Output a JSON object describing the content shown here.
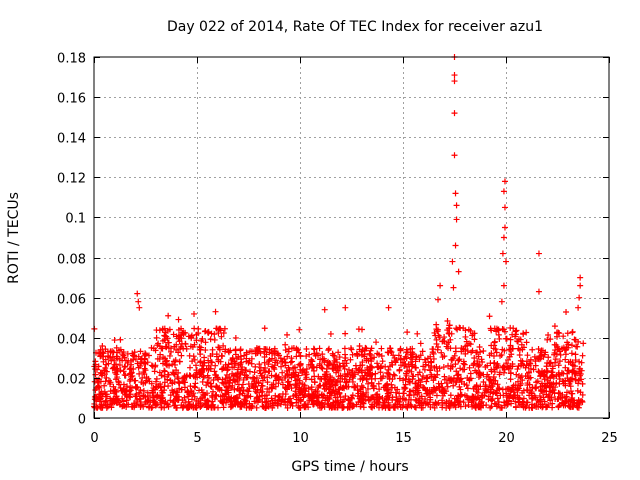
{
  "chart_data": {
    "type": "scatter",
    "title": "Day 022 of 2014, Rate Of TEC Index for receiver azu1",
    "xlabel": "GPS time / hours",
    "ylabel": "ROTI / TECUs",
    "xlim": [
      0,
      25
    ],
    "ylim": [
      0,
      0.18
    ],
    "xticks": [
      0,
      5,
      10,
      15,
      20,
      25
    ],
    "yticks": [
      0,
      0.02,
      0.04,
      0.06,
      0.08,
      0.1,
      0.12,
      0.14,
      0.16,
      0.18
    ],
    "xtick_labels": [
      "0",
      "5",
      "10",
      "15",
      "20",
      "25"
    ],
    "ytick_labels": [
      "0",
      "0.02",
      "0.04",
      "0.06",
      "0.08",
      "0.1",
      "0.12",
      "0.14",
      "0.16",
      "0.18"
    ],
    "grid": true,
    "marker": "+",
    "color": "#ff0000",
    "data_range_hours": [
      0,
      23.75
    ],
    "baseline_band": [
      0.005,
      0.035
    ],
    "series": [
      {
        "name": "ROTI",
        "notable_points": [
          {
            "x": 17.5,
            "y": 0.18
          },
          {
            "x": 17.5,
            "y": 0.171
          },
          {
            "x": 17.5,
            "y": 0.168
          },
          {
            "x": 17.5,
            "y": 0.152
          },
          {
            "x": 17.5,
            "y": 0.131
          },
          {
            "x": 17.55,
            "y": 0.112
          },
          {
            "x": 17.6,
            "y": 0.106
          },
          {
            "x": 17.6,
            "y": 0.099
          },
          {
            "x": 17.55,
            "y": 0.086
          },
          {
            "x": 17.4,
            "y": 0.078
          },
          {
            "x": 17.7,
            "y": 0.073
          },
          {
            "x": 17.45,
            "y": 0.065
          },
          {
            "x": 19.95,
            "y": 0.118
          },
          {
            "x": 19.9,
            "y": 0.113
          },
          {
            "x": 19.95,
            "y": 0.105
          },
          {
            "x": 19.95,
            "y": 0.095
          },
          {
            "x": 19.9,
            "y": 0.09
          },
          {
            "x": 19.85,
            "y": 0.082
          },
          {
            "x": 20.0,
            "y": 0.078
          },
          {
            "x": 19.9,
            "y": 0.066
          },
          {
            "x": 19.8,
            "y": 0.058
          },
          {
            "x": 21.6,
            "y": 0.082
          },
          {
            "x": 21.6,
            "y": 0.063
          },
          {
            "x": 23.6,
            "y": 0.07
          },
          {
            "x": 23.6,
            "y": 0.066
          },
          {
            "x": 23.55,
            "y": 0.06
          },
          {
            "x": 23.5,
            "y": 0.055
          },
          {
            "x": 2.1,
            "y": 0.062
          },
          {
            "x": 2.15,
            "y": 0.058
          },
          {
            "x": 2.2,
            "y": 0.055
          },
          {
            "x": 16.8,
            "y": 0.066
          },
          {
            "x": 16.7,
            "y": 0.059
          },
          {
            "x": 14.3,
            "y": 0.055
          },
          {
            "x": 12.2,
            "y": 0.055
          },
          {
            "x": 11.2,
            "y": 0.054
          },
          {
            "x": 5.9,
            "y": 0.053
          },
          {
            "x": 3.6,
            "y": 0.051
          }
        ]
      }
    ]
  }
}
